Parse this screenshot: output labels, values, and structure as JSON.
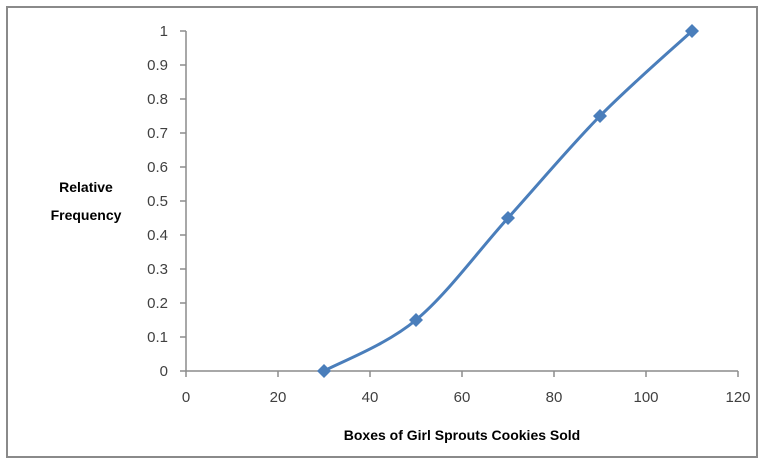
{
  "chart_data": {
    "type": "line",
    "xlabel": "Boxes of Girl Sprouts Cookies Sold",
    "ylabel_lines": [
      "Relative",
      "Frequency"
    ],
    "xlim": [
      0,
      120
    ],
    "ylim": [
      0,
      1
    ],
    "x_ticks": [
      "0",
      "20",
      "40",
      "60",
      "80",
      "100",
      "120"
    ],
    "y_ticks": [
      "0",
      "0.1",
      "0.2",
      "0.3",
      "0.4",
      "0.5",
      "0.6",
      "0.7",
      "0.8",
      "0.9",
      "1"
    ],
    "grid": false,
    "legend": "none",
    "smoothed": true,
    "series": [
      {
        "x": [
          30,
          50,
          70,
          90,
          110
        ],
        "y": [
          0,
          0.15,
          0.45,
          0.75,
          1
        ],
        "color": "#4a7ebb",
        "marker": "diamond"
      }
    ]
  }
}
